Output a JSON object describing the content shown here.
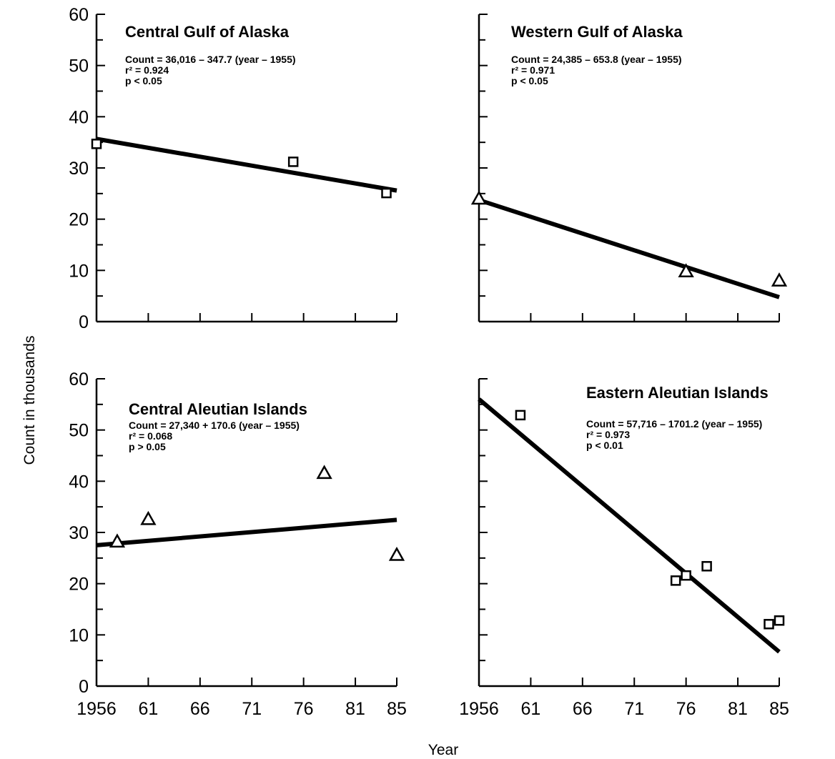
{
  "figure": {
    "y_axis_title": "Count in thousands",
    "x_axis_title": "Year"
  },
  "chart_data": [
    {
      "type": "scatter",
      "title": "Central Gulf of Alaska",
      "equation": "Count = 36,016 – 347.7 (year – 1955)",
      "r2": "r² = 0.924",
      "p": "p < 0.05",
      "marker": "square",
      "xlim": [
        1956,
        85
      ],
      "ylim": [
        0,
        60
      ],
      "x_ticks": [],
      "y_ticks": [
        "0",
        "10",
        "20",
        "30",
        "40",
        "50",
        "60"
      ],
      "points": [
        {
          "x": 1956,
          "y": 34.7
        },
        {
          "x": 1975,
          "y": 31.2
        },
        {
          "x": 1984,
          "y": 25.1
        }
      ],
      "fit": {
        "intercept": 36.016,
        "slope": -0.3477
      }
    },
    {
      "type": "scatter",
      "title": "Western Gulf of Alaska",
      "equation": "Count = 24,385 – 653.8 (year – 1955)",
      "r2": "r² = 0.971",
      "p": "p < 0.05",
      "marker": "triangle",
      "xlim": [
        1956,
        85
      ],
      "ylim": [
        0,
        60
      ],
      "x_ticks": [],
      "y_ticks": [],
      "points": [
        {
          "x": 1956,
          "y": 24.0
        },
        {
          "x": 1976,
          "y": 9.8
        },
        {
          "x": 1985,
          "y": 8.0
        }
      ],
      "fit": {
        "intercept": 24.385,
        "slope": -0.6538
      }
    },
    {
      "type": "scatter",
      "title": "Central Aleutian Islands",
      "equation": "Count = 27,340 + 170.6 (year – 1955)",
      "r2": "r² = 0.068",
      "p": "p > 0.05",
      "marker": "triangle",
      "xlim": [
        1956,
        85
      ],
      "ylim": [
        0,
        60
      ],
      "x_ticks": [
        "1956",
        "61",
        "66",
        "71",
        "76",
        "81",
        "85"
      ],
      "y_ticks": [
        "0",
        "10",
        "20",
        "30",
        "40",
        "50",
        "60"
      ],
      "points": [
        {
          "x": 1958,
          "y": 28.2
        },
        {
          "x": 1961,
          "y": 32.6
        },
        {
          "x": 1978,
          "y": 41.6
        },
        {
          "x": 1985,
          "y": 25.6
        }
      ],
      "fit": {
        "intercept": 27.34,
        "slope": 0.1706
      }
    },
    {
      "type": "scatter",
      "title": "Eastern Aleutian Islands",
      "equation": "Count = 57,716 – 1701.2 (year – 1955)",
      "r2": "r² = 0.973",
      "p": "p < 0.01",
      "marker": "square",
      "xlim": [
        1956,
        85
      ],
      "ylim": [
        0,
        60
      ],
      "x_ticks": [
        "1956",
        "61",
        "66",
        "71",
        "76",
        "81",
        "85"
      ],
      "y_ticks": [],
      "points": [
        {
          "x": 1960,
          "y": 52.9
        },
        {
          "x": 1975,
          "y": 20.6
        },
        {
          "x": 1976,
          "y": 21.6
        },
        {
          "x": 1978,
          "y": 23.4
        },
        {
          "x": 1984,
          "y": 12.1
        },
        {
          "x": 1985,
          "y": 12.8
        }
      ],
      "fit": {
        "intercept": 57.716,
        "slope": -1.7012
      }
    }
  ]
}
